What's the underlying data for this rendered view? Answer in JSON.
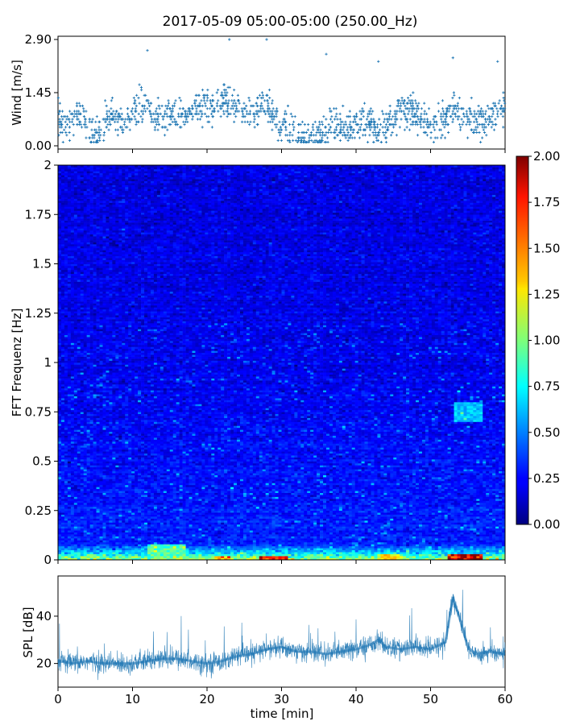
{
  "title": "2017-05-09 05:00-05:00 (250.00_Hz)",
  "colors": {
    "series": "#1f77b4",
    "colormap": "jet"
  },
  "chart_data": [
    {
      "type": "scatter",
      "panel": "wind",
      "ylabel": "Wind [m/s]",
      "xlabel": "",
      "xlim": [
        0,
        60
      ],
      "ylim": [
        0,
        2.9
      ],
      "yticks": [
        "0.00",
        "1.45",
        "2.90"
      ],
      "marker": "+",
      "points": [
        [
          0.5,
          0.7
        ],
        [
          1,
          0.6
        ],
        [
          2,
          0.7
        ],
        [
          3,
          0.85
        ],
        [
          4,
          0.5
        ],
        [
          5,
          0.3
        ],
        [
          6,
          0.4
        ],
        [
          7,
          0.8
        ],
        [
          8,
          0.75
        ],
        [
          9,
          0.6
        ],
        [
          10,
          0.9
        ],
        [
          11,
          1.0
        ],
        [
          11.5,
          1.1
        ],
        [
          12,
          1.2
        ],
        [
          13,
          0.7
        ],
        [
          14,
          0.7
        ],
        [
          15,
          0.8
        ],
        [
          16,
          0.9
        ],
        [
          17,
          0.7
        ],
        [
          18,
          1.0
        ],
        [
          19,
          1.0
        ],
        [
          20,
          1.1
        ],
        [
          21,
          1.0
        ],
        [
          22,
          1.2
        ],
        [
          23,
          1.1
        ],
        [
          24,
          1.0
        ],
        [
          25,
          0.9
        ],
        [
          26,
          0.8
        ],
        [
          27,
          1.0
        ],
        [
          28,
          1.2
        ],
        [
          29,
          0.7
        ],
        [
          30,
          0.6
        ],
        [
          31,
          0.5
        ],
        [
          32,
          0.4
        ],
        [
          33,
          0.2
        ],
        [
          34,
          0.2
        ],
        [
          35,
          0.3
        ],
        [
          36,
          0.4
        ],
        [
          37,
          0.5
        ],
        [
          38,
          0.6
        ],
        [
          39,
          0.5
        ],
        [
          40,
          0.6
        ],
        [
          41,
          0.7
        ],
        [
          42,
          0.6
        ],
        [
          43,
          0.4
        ],
        [
          44,
          0.5
        ],
        [
          45,
          0.7
        ],
        [
          46,
          0.9
        ],
        [
          47,
          1.0
        ],
        [
          48,
          0.9
        ],
        [
          49,
          0.7
        ],
        [
          50,
          0.5
        ],
        [
          51,
          0.5
        ],
        [
          52,
          0.8
        ],
        [
          53,
          1.1
        ],
        [
          54,
          0.9
        ],
        [
          55,
          0.7
        ],
        [
          56,
          0.6
        ],
        [
          57,
          0.7
        ],
        [
          58,
          0.8
        ],
        [
          59,
          1.0
        ],
        [
          12,
          2.6
        ],
        [
          23,
          2.9
        ],
        [
          28,
          2.9
        ],
        [
          36,
          2.5
        ],
        [
          43,
          2.3
        ],
        [
          53,
          2.4
        ],
        [
          59,
          2.3
        ]
      ]
    },
    {
      "type": "heatmap",
      "panel": "spectrogram",
      "ylabel": "FFT Frequenz [Hz]",
      "xlabel": "",
      "xlim": [
        0,
        60
      ],
      "ylim": [
        0,
        2
      ],
      "yticks": [
        "0",
        "0.25",
        "0.5",
        "0.75",
        "1",
        "1.25",
        "1.5",
        "1.75",
        "2"
      ],
      "colorbar": {
        "range": [
          0,
          2
        ],
        "ticks": [
          "0.00",
          "0.25",
          "0.50",
          "0.75",
          "1.00",
          "1.25",
          "1.50",
          "1.75",
          "2.00"
        ]
      },
      "notes_values": {
        "background_level": 0.15,
        "low_freq_band": [
          0,
          0.08
        ],
        "low_freq_level": 0.9,
        "hotspots": [
          {
            "t": [
              21,
              23
            ],
            "f": [
              0,
              0.02
            ],
            "level": 1.6
          },
          {
            "t": [
              27,
              31
            ],
            "f": [
              0,
              0.02
            ],
            "level": 1.9
          },
          {
            "t": [
              43,
              46
            ],
            "f": [
              0,
              0.03
            ],
            "level": 1.4
          },
          {
            "t": [
              52.5,
              57
            ],
            "f": [
              0,
              0.03
            ],
            "level": 2.0
          },
          {
            "t": [
              53,
              57
            ],
            "f": [
              0.7,
              0.8
            ],
            "level": 0.7
          },
          {
            "t": [
              12,
              17
            ],
            "f": [
              0,
              0.08
            ],
            "level": 1.0
          }
        ]
      }
    },
    {
      "type": "line",
      "panel": "spl",
      "ylabel": "SPL [dB]",
      "xlabel": "time [min]",
      "xlim": [
        0,
        60
      ],
      "ylim": [
        10,
        57
      ],
      "xticks": [
        "0",
        "10",
        "20",
        "30",
        "40",
        "50",
        "60"
      ],
      "yticks": [
        "20",
        "40"
      ],
      "x": [
        0,
        2,
        4,
        6,
        8,
        10,
        12,
        14,
        16,
        18,
        20,
        22,
        24,
        26,
        28,
        30,
        32,
        34,
        36,
        38,
        40,
        42,
        43,
        44,
        46,
        48,
        50,
        52,
        53,
        54,
        55,
        56,
        58,
        60
      ],
      "y": [
        21,
        20,
        21,
        20,
        20,
        20,
        21,
        22,
        22,
        21,
        20,
        21,
        23,
        24,
        26,
        27,
        25,
        25,
        24,
        25,
        26,
        28,
        30,
        27,
        26,
        27,
        26,
        29,
        48,
        38,
        27,
        24,
        25,
        24
      ],
      "spread": 4
    }
  ]
}
